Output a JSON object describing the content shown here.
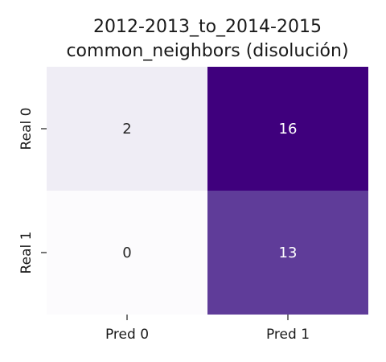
{
  "chart_data": {
    "type": "heatmap",
    "title_lines": [
      "2012-2013_to_2014-2015",
      "common_neighbors (disolución)"
    ],
    "x_categories": [
      "Pred 0",
      "Pred 1"
    ],
    "y_categories": [
      "Real 0",
      "Real 1"
    ],
    "values": [
      [
        2,
        16
      ],
      [
        0,
        13
      ]
    ],
    "value_range": [
      0,
      16
    ],
    "colormap": "purples",
    "colors": {
      "low": "#fcfbfd",
      "high": "#3f007d"
    },
    "colorbar": false,
    "grid": false
  }
}
